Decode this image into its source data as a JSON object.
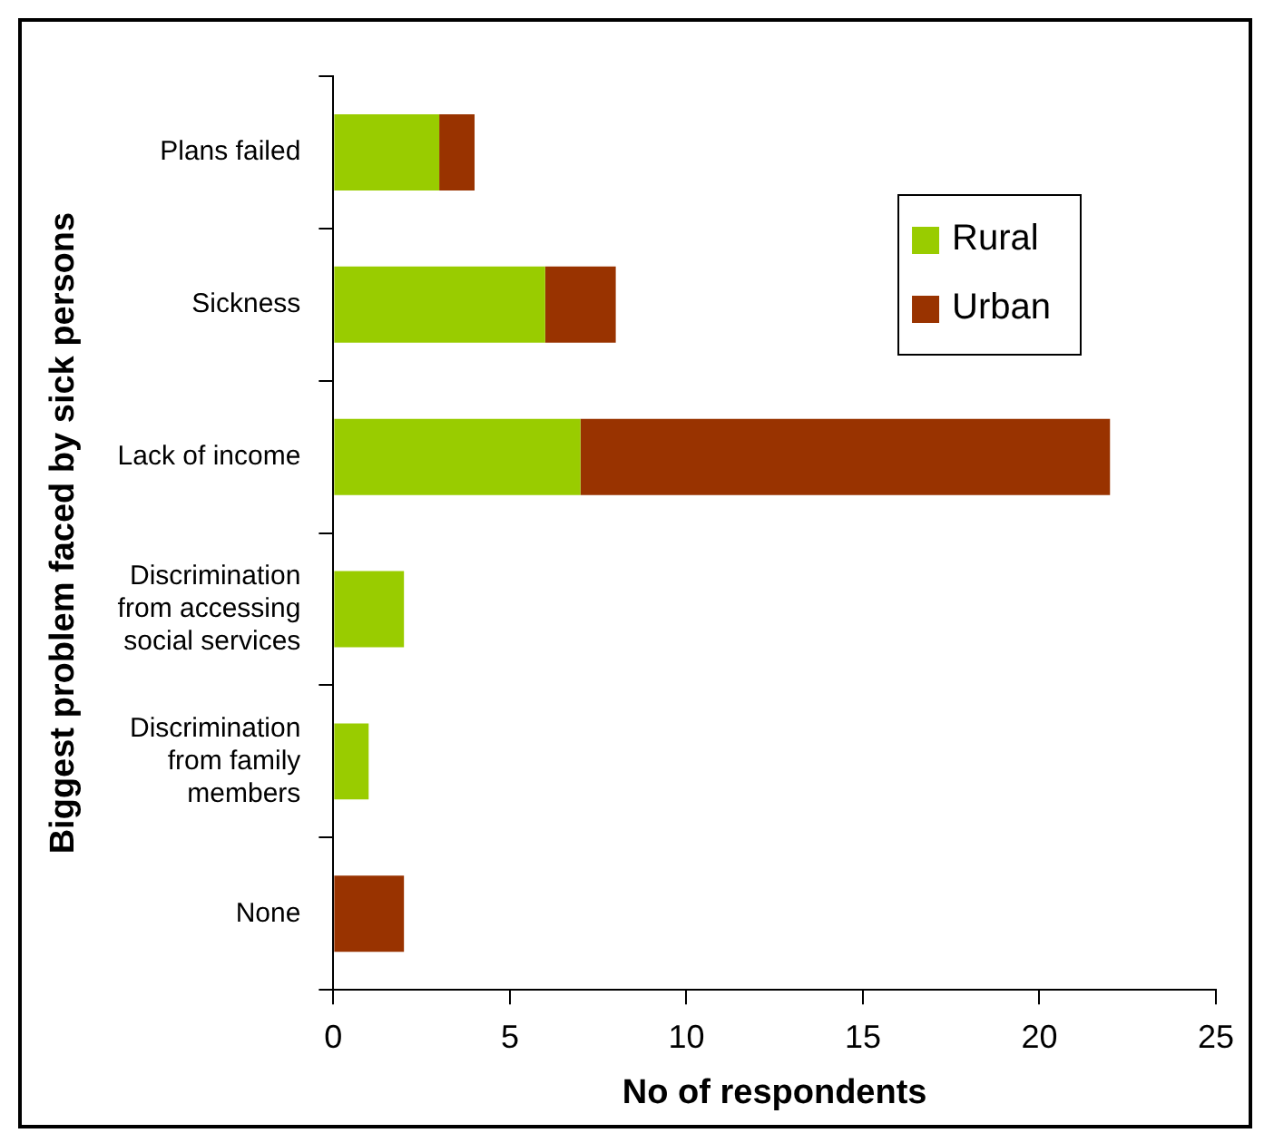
{
  "chart_data": {
    "type": "bar",
    "orientation": "horizontal",
    "stacked": true,
    "xlabel": "No of respondents",
    "ylabel": "Biggest problem faced by sick persons",
    "categories": [
      "Plans failed",
      "Sickness",
      "Lack of income",
      "Discrimination from accessing social services",
      "Discrimination from family members",
      "None"
    ],
    "series": [
      {
        "name": "Rural",
        "color": "#99cc00",
        "values": [
          3,
          6,
          7,
          2,
          1,
          0
        ]
      },
      {
        "name": "Urban",
        "color": "#993300",
        "values": [
          1,
          2,
          15,
          0,
          0,
          2
        ]
      }
    ],
    "xlim": [
      0,
      25
    ],
    "xticks": [
      0,
      5,
      10,
      15,
      20,
      25
    ],
    "grid": false,
    "legend": "top right"
  }
}
